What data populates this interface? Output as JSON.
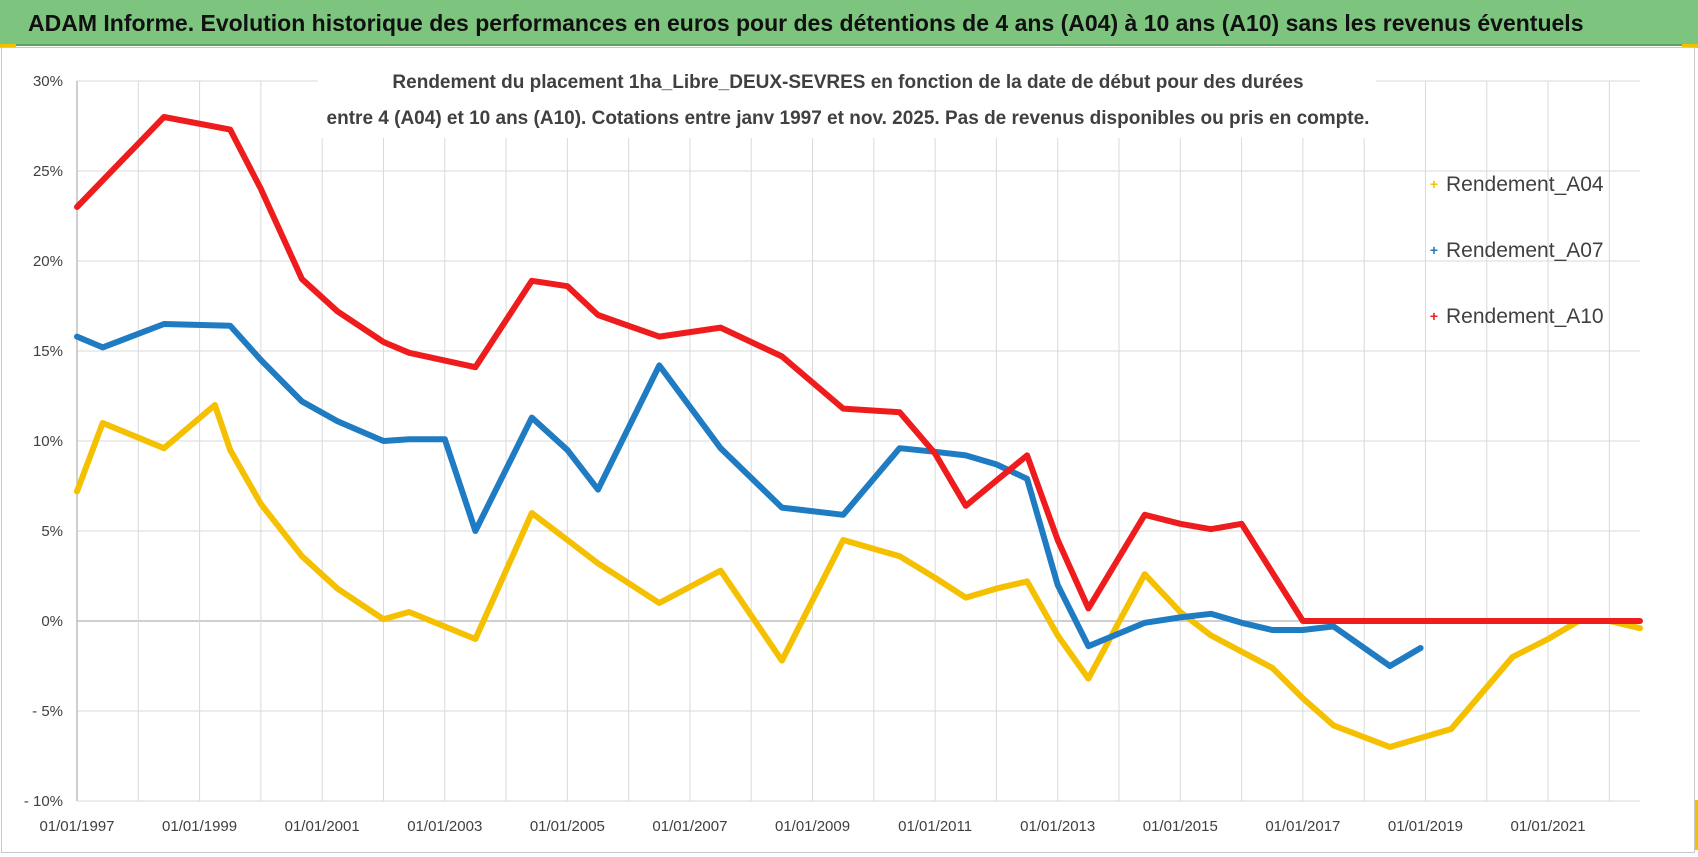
{
  "banner": {
    "title": "ADAM Informe. Evolution historique des performances en euros pour des détentions de 4 ans (A04) à 10 ans (A10) sans les revenus éventuels"
  },
  "colors": {
    "banner_bg": "#7dc47e",
    "a04": "#f5c000",
    "a07": "#1f7bc2",
    "a10": "#ee1c1c",
    "grid": "#d9d9d9",
    "zero_line": "#bfbfbf"
  },
  "chart_data": {
    "type": "line",
    "title_line1": "Rendement du placement 1ha_Libre_DEUX-SEVRES en fonction de la date de début pour des durées",
    "title_line2": "entre 4 (A04) et 10 ans (A10).  Cotations entre janv 1997 et nov. 2025. Pas de revenus disponibles ou pris en compte.",
    "xlabel": "",
    "ylabel": "",
    "xlim": [
      1997.0,
      2022.5
    ],
    "ylim": [
      -10,
      30
    ],
    "y_ticks": [
      -10,
      -5,
      0,
      5,
      10,
      15,
      20,
      25,
      30
    ],
    "y_tick_labels": [
      "- 10%",
      "- 5%",
      "0%",
      "5%",
      "10%",
      "15%",
      "20%",
      "25%",
      "30%"
    ],
    "x_ticks": [
      1997,
      1999,
      2001,
      2003,
      2005,
      2007,
      2009,
      2011,
      2013,
      2015,
      2017,
      2019,
      2021
    ],
    "x_tick_labels": [
      "01/01/1997",
      "01/01/1999",
      "01/01/2001",
      "01/01/2003",
      "01/01/2005",
      "01/01/2007",
      "01/01/2009",
      "01/01/2011",
      "01/01/2013",
      "01/01/2015",
      "01/01/2017",
      "01/01/2019",
      "01/01/2021"
    ],
    "grid": true,
    "legend_position": "right",
    "series": [
      {
        "name": "Rendement_A04",
        "color": "#f5c000",
        "x": [
          1997.0,
          1997.42,
          1998.42,
          1999.25,
          1999.5,
          2000.0,
          2000.67,
          2001.25,
          2002.0,
          2002.42,
          2003.5,
          2004.42,
          2005.0,
          2005.5,
          2006.5,
          2007.5,
          2008.5,
          2009.5,
          2010.42,
          2011.0,
          2011.5,
          2012.0,
          2012.5,
          2013.0,
          2013.5,
          2014.42,
          2015.0,
          2015.5,
          2016.5,
          2017.0,
          2017.5,
          2018.42,
          2019.42,
          2020.42,
          2021.0,
          2021.5,
          2022.0,
          2022.5
        ],
        "values": [
          7.2,
          11.0,
          9.6,
          12.0,
          9.5,
          6.5,
          3.6,
          1.8,
          0.1,
          0.5,
          -1.0,
          6.0,
          4.5,
          3.2,
          1.0,
          2.8,
          -2.2,
          4.5,
          3.6,
          2.4,
          1.3,
          1.8,
          2.2,
          -0.8,
          -3.2,
          2.6,
          0.5,
          -0.8,
          -2.6,
          -4.3,
          -5.8,
          -7.0,
          -6.0,
          -2.0,
          -1.0,
          0.0,
          0.0,
          -0.4
        ]
      },
      {
        "name": "Rendement_A07",
        "color": "#1f7bc2",
        "x": [
          1997.0,
          1997.42,
          1998.42,
          1999.5,
          2000.0,
          2000.67,
          2001.25,
          2002.0,
          2002.42,
          2003.0,
          2003.5,
          2004.42,
          2005.0,
          2005.5,
          2006.5,
          2007.5,
          2008.5,
          2009.5,
          2010.42,
          2011.0,
          2011.5,
          2012.0,
          2012.5,
          2013.0,
          2013.5,
          2014.42,
          2015.0,
          2015.5,
          2016.0,
          2016.5,
          2017.0,
          2017.5,
          2018.42,
          2018.92
        ],
        "values": [
          15.8,
          15.2,
          16.5,
          16.4,
          14.5,
          12.2,
          11.1,
          10.0,
          10.1,
          10.1,
          5.0,
          11.3,
          9.5,
          7.3,
          14.2,
          9.6,
          6.3,
          5.9,
          9.6,
          9.4,
          9.2,
          8.7,
          7.9,
          2.0,
          -1.4,
          -0.1,
          0.2,
          0.4,
          -0.1,
          -0.5,
          -0.5,
          -0.3,
          -2.5,
          -1.5
        ]
      },
      {
        "name": "Rendement_A10",
        "color": "#ee1c1c",
        "x": [
          1997.0,
          1998.42,
          1999.5,
          2000.0,
          2000.67,
          2001.25,
          2002.0,
          2002.42,
          2003.5,
          2004.42,
          2005.0,
          2005.5,
          2006.5,
          2007.5,
          2008.5,
          2009.5,
          2010.42,
          2011.0,
          2011.5,
          2012.0,
          2012.5,
          2013.0,
          2013.5,
          2014.42,
          2015.0,
          2015.5,
          2016.0,
          2017.0,
          2018.0,
          2019.0,
          2020.0,
          2021.0,
          2022.0,
          2022.5
        ],
        "values": [
          23.0,
          28.0,
          27.3,
          24.0,
          19.0,
          17.2,
          15.5,
          14.9,
          14.1,
          18.9,
          18.6,
          17.0,
          15.8,
          16.3,
          14.7,
          11.8,
          11.6,
          9.3,
          6.4,
          7.8,
          9.2,
          4.5,
          0.7,
          5.9,
          5.4,
          5.1,
          5.4,
          0.0,
          0.0,
          0.0,
          0.0,
          0.0,
          0.0,
          0.0
        ]
      }
    ]
  }
}
